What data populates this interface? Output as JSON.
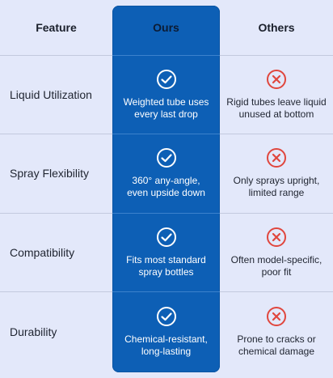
{
  "header": {
    "feature_label": "Feature",
    "ours_label": "Ours",
    "others_label": "Others"
  },
  "rows": [
    {
      "feature": "Liquid Utilization",
      "ours": "Weighted tube uses every last drop",
      "others": "Rigid tubes leave liquid unused at bottom"
    },
    {
      "feature": "Spray Flexibility",
      "ours": "360° any-angle, even upside down",
      "others": "Only sprays upright, limited range"
    },
    {
      "feature": "Compatibility",
      "ours": "Fits most standard spray bottles",
      "others": "Often model-specific, poor fit"
    },
    {
      "feature": "Durability",
      "ours": "Chemical-resistant, long-lasting",
      "others": "Prone to cracks or chemical damage"
    }
  ],
  "icons": {
    "ours_icon": "check-circle-icon",
    "others_icon": "x-circle-icon"
  },
  "colors": {
    "background": "#e3e8fa",
    "ours_column": "#0d5fb5",
    "others_icon": "#e0463d",
    "check_icon": "#ffffff"
  }
}
